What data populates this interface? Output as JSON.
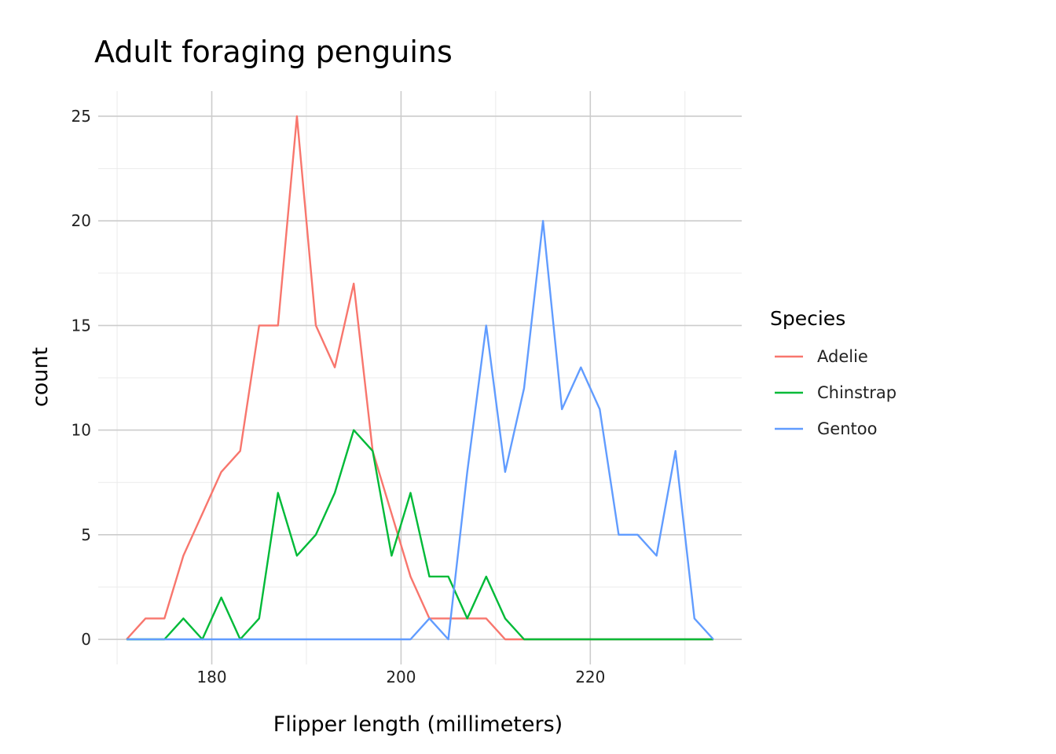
{
  "chart_data": {
    "type": "line",
    "title": "Adult foraging penguins",
    "xlabel": "Flipper length (millimeters)",
    "ylabel": "count",
    "xlim": [
      168,
      236
    ],
    "ylim": [
      -1.2,
      26.2
    ],
    "x_major_ticks": [
      180,
      200,
      220
    ],
    "x_minor_ticks": [
      170,
      190,
      210,
      230
    ],
    "y_major_ticks": [
      0,
      5,
      10,
      15,
      20,
      25
    ],
    "y_minor_ticks": [
      2.5,
      7.5,
      12.5,
      17.5,
      22.5
    ],
    "tick_labels_x": [
      "180",
      "200",
      "220"
    ],
    "tick_labels_y": [
      "0",
      "5",
      "10",
      "15",
      "20",
      "25"
    ],
    "grid": true,
    "legend": {
      "title": "Species",
      "position": "right"
    },
    "x": [
      171,
      173,
      175,
      177,
      179,
      181,
      183,
      185,
      187,
      189,
      191,
      193,
      195,
      197,
      199,
      201,
      203,
      205,
      207,
      209,
      211,
      213,
      215,
      217,
      219,
      221,
      223,
      225,
      227,
      229,
      231,
      233
    ],
    "series": [
      {
        "name": "Adelie",
        "color": "#F8766D",
        "values": [
          0,
          1,
          1,
          4,
          6,
          8,
          9,
          15,
          15,
          25,
          15,
          13,
          17,
          9,
          6,
          3,
          1,
          1,
          1,
          1,
          0,
          0,
          0,
          0,
          0,
          0,
          0,
          0,
          0,
          0,
          0,
          0
        ]
      },
      {
        "name": "Chinstrap",
        "color": "#00BA38",
        "values": [
          0,
          0,
          0,
          1,
          0,
          2,
          0,
          1,
          7,
          4,
          5,
          7,
          10,
          9,
          4,
          7,
          3,
          3,
          1,
          3,
          1,
          0,
          0,
          0,
          0,
          0,
          0,
          0,
          0,
          0,
          0,
          0
        ]
      },
      {
        "name": "Gentoo",
        "color": "#619CFF",
        "values": [
          0,
          0,
          0,
          0,
          0,
          0,
          0,
          0,
          0,
          0,
          0,
          0,
          0,
          0,
          0,
          0,
          1,
          0,
          8,
          15,
          8,
          12,
          20,
          11,
          13,
          11,
          5,
          5,
          4,
          9,
          1,
          0
        ]
      }
    ]
  }
}
